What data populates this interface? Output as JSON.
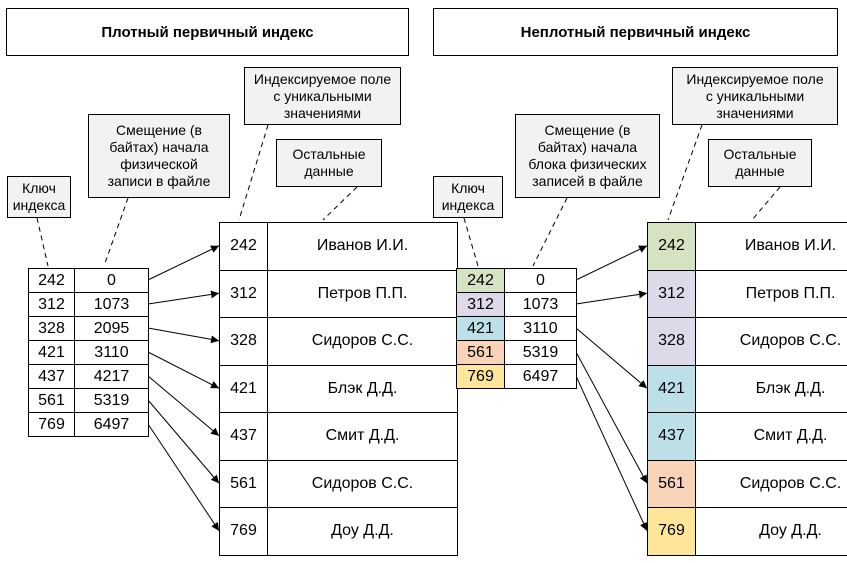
{
  "left": {
    "title": "Плотный первичный индекс",
    "callouts": {
      "key": "Ключ\nиндекса",
      "offset": "Смещение (в\nбайтах) начала\nфизической\nзаписи в файле",
      "field": "Индексируемое поле\nс уникальными\nзначениями",
      "rest": "Остальные\nданные"
    },
    "index": [
      {
        "key": "242",
        "off": "0"
      },
      {
        "key": "312",
        "off": "1073"
      },
      {
        "key": "328",
        "off": "2095"
      },
      {
        "key": "421",
        "off": "3110"
      },
      {
        "key": "437",
        "off": "4217"
      },
      {
        "key": "561",
        "off": "5319"
      },
      {
        "key": "769",
        "off": "6497"
      }
    ],
    "data": [
      {
        "key": "242",
        "name": "Иванов И.И."
      },
      {
        "key": "312",
        "name": "Петров П.П."
      },
      {
        "key": "328",
        "name": "Сидоров С.С."
      },
      {
        "key": "421",
        "name": "Блэк Д.Д."
      },
      {
        "key": "437",
        "name": "Смит Д.Д."
      },
      {
        "key": "561",
        "name": "Сидоров С.С."
      },
      {
        "key": "769",
        "name": "Доу Д.Д."
      }
    ]
  },
  "right": {
    "title": "Неплотный первичный индекс",
    "callouts": {
      "key": "Ключ\nиндекса",
      "offset": "Смещение (в\nбайтах) начала\nблока физических\nзаписей в файле",
      "field": "Индексируемое поле\nс уникальными\nзначениями",
      "rest": "Остальные\nданные"
    },
    "index": [
      {
        "key": "242",
        "off": "0",
        "color": "#d6e3c3"
      },
      {
        "key": "312",
        "off": "1073",
        "color": "#ddd9e8"
      },
      {
        "key": "421",
        "off": "3110",
        "color": "#bcdfe8"
      },
      {
        "key": "561",
        "off": "5319",
        "color": "#f8d3b7"
      },
      {
        "key": "769",
        "off": "6497",
        "color": "#fde59a"
      }
    ],
    "data": [
      {
        "key": "242",
        "name": "Иванов И.И.",
        "color": "#d6e3c3"
      },
      {
        "key": "312",
        "name": "Петров П.П.",
        "color": "#ddd9e8"
      },
      {
        "key": "328",
        "name": "Сидоров С.С.",
        "color": "#ddd9e8"
      },
      {
        "key": "421",
        "name": "Блэк Д.Д.",
        "color": "#bcdfe8"
      },
      {
        "key": "437",
        "name": "Смит Д.Д.",
        "color": "#bcdfe8"
      },
      {
        "key": "561",
        "name": "Сидоров С.С.",
        "color": "#f8d3b7"
      },
      {
        "key": "769",
        "name": "Доу Д.Д.",
        "color": "#fde59a"
      }
    ]
  }
}
